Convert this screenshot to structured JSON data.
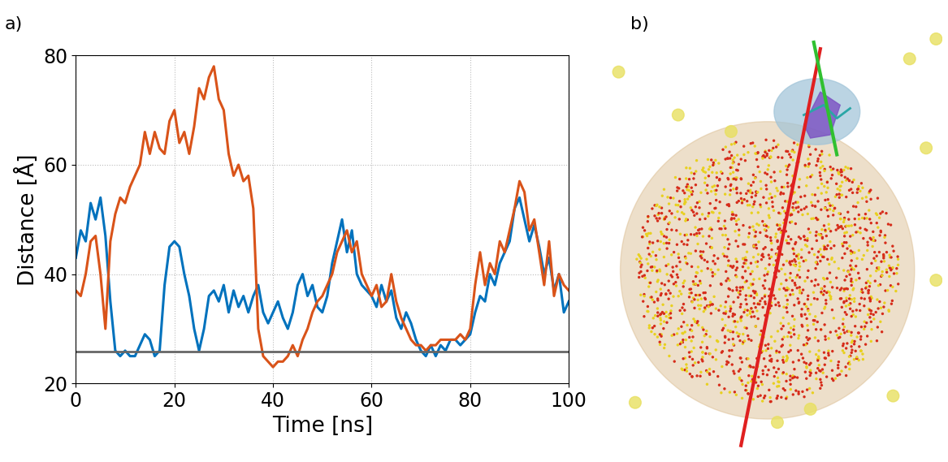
{
  "chart_data": {
    "type": "line",
    "title": "a)",
    "x_label": "Time [ns]",
    "y_label": "Distance [Å]",
    "x": [
      0,
      1,
      2,
      3,
      4,
      5,
      6,
      7,
      8,
      9,
      10,
      11,
      12,
      13,
      14,
      15,
      16,
      17,
      18,
      19,
      20,
      21,
      22,
      23,
      24,
      25,
      26,
      27,
      28,
      29,
      30,
      31,
      32,
      33,
      34,
      35,
      36,
      37,
      38,
      39,
      40,
      41,
      42,
      43,
      44,
      45,
      46,
      47,
      48,
      49,
      50,
      51,
      52,
      53,
      54,
      55,
      56,
      57,
      58,
      59,
      60,
      61,
      62,
      63,
      64,
      65,
      66,
      67,
      68,
      69,
      70,
      71,
      72,
      73,
      74,
      75,
      76,
      77,
      78,
      79,
      80,
      81,
      82,
      83,
      84,
      85,
      86,
      87,
      88,
      89,
      90,
      91,
      92,
      93,
      94,
      95,
      96,
      97,
      98,
      99,
      100
    ],
    "series": [
      {
        "color": "#0072BD",
        "values": [
          43,
          48,
          46,
          53,
          50,
          54,
          47,
          35,
          26,
          25,
          26,
          25,
          25,
          27,
          29,
          28,
          25,
          26,
          38,
          45,
          46,
          45,
          40,
          36,
          30,
          26,
          30,
          36,
          37,
          35,
          38,
          33,
          37,
          34,
          36,
          33,
          36,
          38,
          33,
          31,
          33,
          35,
          32,
          30,
          33,
          38,
          40,
          36,
          38,
          34,
          33,
          36,
          42,
          46,
          50,
          44,
          48,
          40,
          38,
          37,
          36,
          34,
          38,
          35,
          37,
          32,
          30,
          33,
          31,
          28,
          26,
          25,
          27,
          25,
          27,
          26,
          28,
          28,
          27,
          28,
          29,
          33,
          36,
          35,
          40,
          38,
          42,
          44,
          46,
          52,
          54,
          50,
          46,
          49,
          45,
          40,
          43,
          37,
          40,
          33,
          35
        ]
      },
      {
        "color": "#D95319",
        "values": [
          37,
          36,
          40,
          46,
          47,
          40,
          30,
          46,
          51,
          54,
          53,
          56,
          58,
          60,
          66,
          62,
          66,
          63,
          62,
          68,
          70,
          64,
          66,
          62,
          67,
          74,
          72,
          76,
          78,
          72,
          70,
          62,
          58,
          60,
          57,
          58,
          52,
          30,
          25,
          24,
          23,
          24,
          24,
          25,
          27,
          25,
          28,
          30,
          33,
          35,
          36,
          38,
          40,
          44,
          46,
          48,
          44,
          46,
          40,
          38,
          36,
          38,
          34,
          35,
          40,
          35,
          32,
          30,
          28,
          27,
          27,
          26,
          27,
          27,
          28,
          28,
          28,
          28,
          29,
          28,
          30,
          38,
          44,
          38,
          42,
          40,
          46,
          44,
          48,
          52,
          57,
          55,
          48,
          50,
          44,
          38,
          46,
          36,
          40,
          38,
          37
        ]
      },
      {
        "color": "#666666",
        "x": [
          0,
          100
        ],
        "values": [
          25.8,
          25.8
        ]
      }
    ],
    "xlim": [
      0,
      100
    ],
    "xticks": [
      0,
      20,
      40,
      60,
      80,
      100
    ],
    "ylim": [
      20,
      80
    ],
    "yticks": [
      20,
      40,
      60,
      80
    ],
    "grid": true
  },
  "image": {
    "label": "b)"
  }
}
